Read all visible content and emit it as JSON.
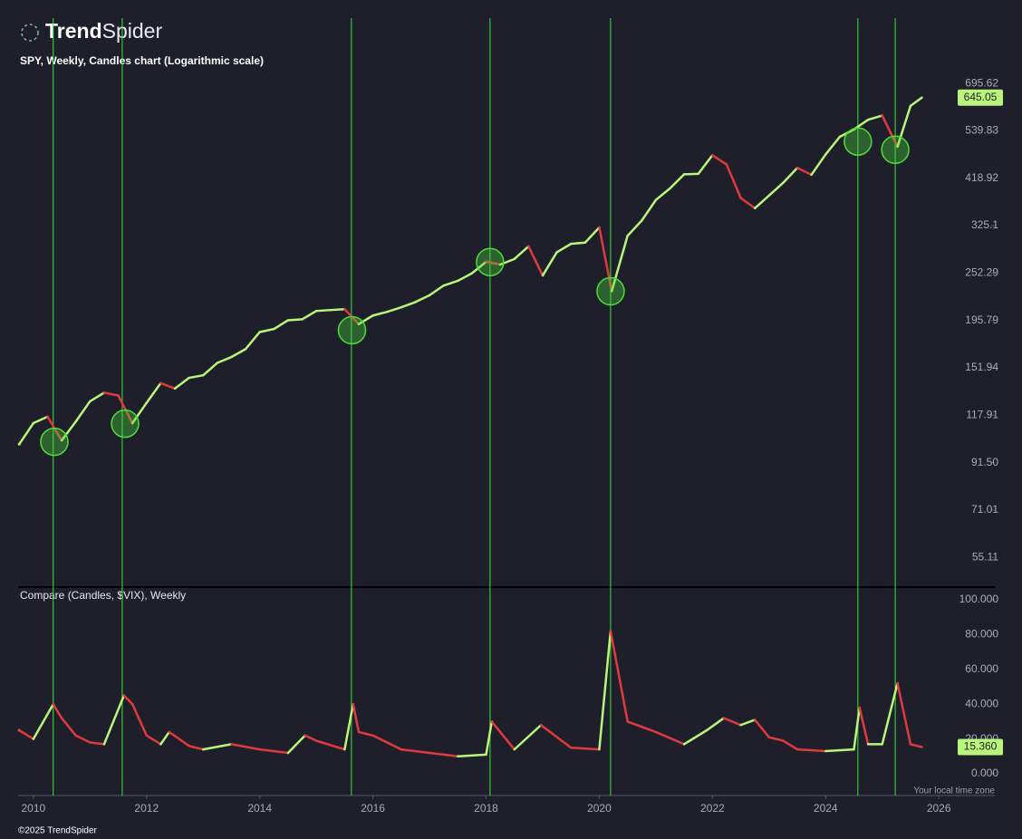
{
  "header": {
    "logo_bold": "Trend",
    "logo_light": "Spider"
  },
  "footer": {
    "copyright": "©2025 TrendSpider",
    "timezone": "Your local time zone"
  },
  "chart_data": [
    {
      "type": "line",
      "title": "SPY, Weekly, Candles chart (Logarithmic scale)",
      "log_scale": true,
      "xlim": [
        2009.73,
        2026.99
      ],
      "ylim": [
        47,
        987
      ],
      "yticks": [
        695.62,
        539.83,
        418.92,
        325.1,
        252.29,
        195.79,
        151.94,
        117.91,
        {
          "value": 91.5,
          "label": "91.50"
        },
        71.01,
        55.11
      ],
      "up_color": "#b8f57a",
      "down_color": "#e0393e",
      "x": [
        2009.75,
        2010.0,
        2010.25,
        2010.5,
        2010.75,
        2011.0,
        2011.25,
        2011.5,
        2011.75,
        2012.0,
        2012.25,
        2012.5,
        2012.75,
        2013.0,
        2013.25,
        2013.5,
        2013.75,
        2014.0,
        2014.25,
        2014.5,
        2014.75,
        2015.0,
        2015.25,
        2015.5,
        2015.75,
        2016.0,
        2016.25,
        2016.5,
        2016.75,
        2017.0,
        2017.25,
        2017.5,
        2017.75,
        2018.0,
        2018.25,
        2018.5,
        2018.75,
        2019.0,
        2019.25,
        2019.5,
        2019.75,
        2020.0,
        2020.22,
        2020.5,
        2020.75,
        2021.0,
        2021.25,
        2021.5,
        2021.75,
        2022.0,
        2022.25,
        2022.5,
        2022.75,
        2023.0,
        2023.25,
        2023.5,
        2023.75,
        2024.0,
        2024.25,
        2024.5,
        2024.75,
        2025.0,
        2025.27,
        2025.5,
        2025.7
      ],
      "values": [
        101,
        113,
        117,
        103,
        114,
        127,
        133,
        131,
        113,
        126,
        140,
        136,
        144,
        146,
        156,
        161,
        168,
        184,
        187,
        196,
        197,
        206,
        207,
        208,
        192,
        201,
        205,
        210,
        216,
        224,
        236,
        242,
        252,
        268,
        264,
        272,
        291,
        249,
        282,
        295,
        297,
        322,
        229,
        308,
        334,
        373,
        397,
        428,
        429,
        474,
        451,
        377,
        357,
        382,
        409,
        443,
        427,
        476,
        523,
        544,
        573,
        586,
        496,
        617,
        645.05
      ],
      "last_value": 645.05,
      "events": {
        "color": "#39e639",
        "x": [
          2010.35,
          2011.57,
          2015.62,
          2018.07,
          2020.2,
          2024.57,
          2025.23
        ]
      },
      "markers": {
        "color": "#4ddc3a",
        "x": [
          2010.37,
          2011.62,
          2015.63,
          2018.07,
          2020.2,
          2024.57,
          2025.23
        ],
        "values": [
          102.3,
          112.7,
          185.8,
          267.5,
          228.8,
          509.9,
          488.1
        ]
      }
    },
    {
      "type": "line",
      "title": "Compare (Candles, $VIX), Weekly",
      "xlim": [
        2009.73,
        2026.99
      ],
      "xticks": [
        2010,
        2012,
        2014,
        2016,
        2018,
        2020,
        2022,
        2024,
        2026
      ],
      "ylim": [
        -12.5,
        106.25
      ],
      "yticks": [
        {
          "value": 100,
          "label": "100.000"
        },
        {
          "value": 80,
          "label": "80.000"
        },
        {
          "value": 60,
          "label": "60.000"
        },
        {
          "value": 40,
          "label": "40.000"
        },
        {
          "value": 20,
          "label": "20.000"
        },
        {
          "value": 0,
          "label": "0.000"
        }
      ],
      "up_color": "#b8f57a",
      "down_color": "#e0393e",
      "x": [
        2009.75,
        2010.0,
        2010.35,
        2010.5,
        2010.75,
        2011.0,
        2011.25,
        2011.6,
        2011.75,
        2012.0,
        2012.25,
        2012.4,
        2012.75,
        2013.0,
        2013.5,
        2014.0,
        2014.5,
        2014.8,
        2015.0,
        2015.5,
        2015.65,
        2015.75,
        2016.0,
        2016.5,
        2017.0,
        2017.5,
        2018.0,
        2018.1,
        2018.5,
        2018.97,
        2019.5,
        2020.0,
        2020.2,
        2020.5,
        2020.75,
        2021.0,
        2021.5,
        2021.9,
        2022.2,
        2022.5,
        2022.75,
        2023.0,
        2023.25,
        2023.5,
        2024.0,
        2024.5,
        2024.6,
        2024.75,
        2025.0,
        2025.27,
        2025.5,
        2025.7
      ],
      "values": [
        25,
        20,
        40,
        32,
        22,
        18,
        17,
        45,
        40,
        22,
        17,
        24,
        16,
        14,
        17,
        14,
        12,
        22,
        19,
        14,
        40,
        24,
        22,
        14,
        12,
        10,
        11,
        30,
        14,
        28,
        15,
        14,
        82,
        30,
        27,
        24,
        17,
        25,
        32,
        28,
        31,
        21,
        19,
        14,
        13,
        14,
        38,
        17,
        17,
        52,
        17,
        15.36
      ],
      "last_value": {
        "value": 15.36,
        "label": "15.360"
      }
    }
  ]
}
